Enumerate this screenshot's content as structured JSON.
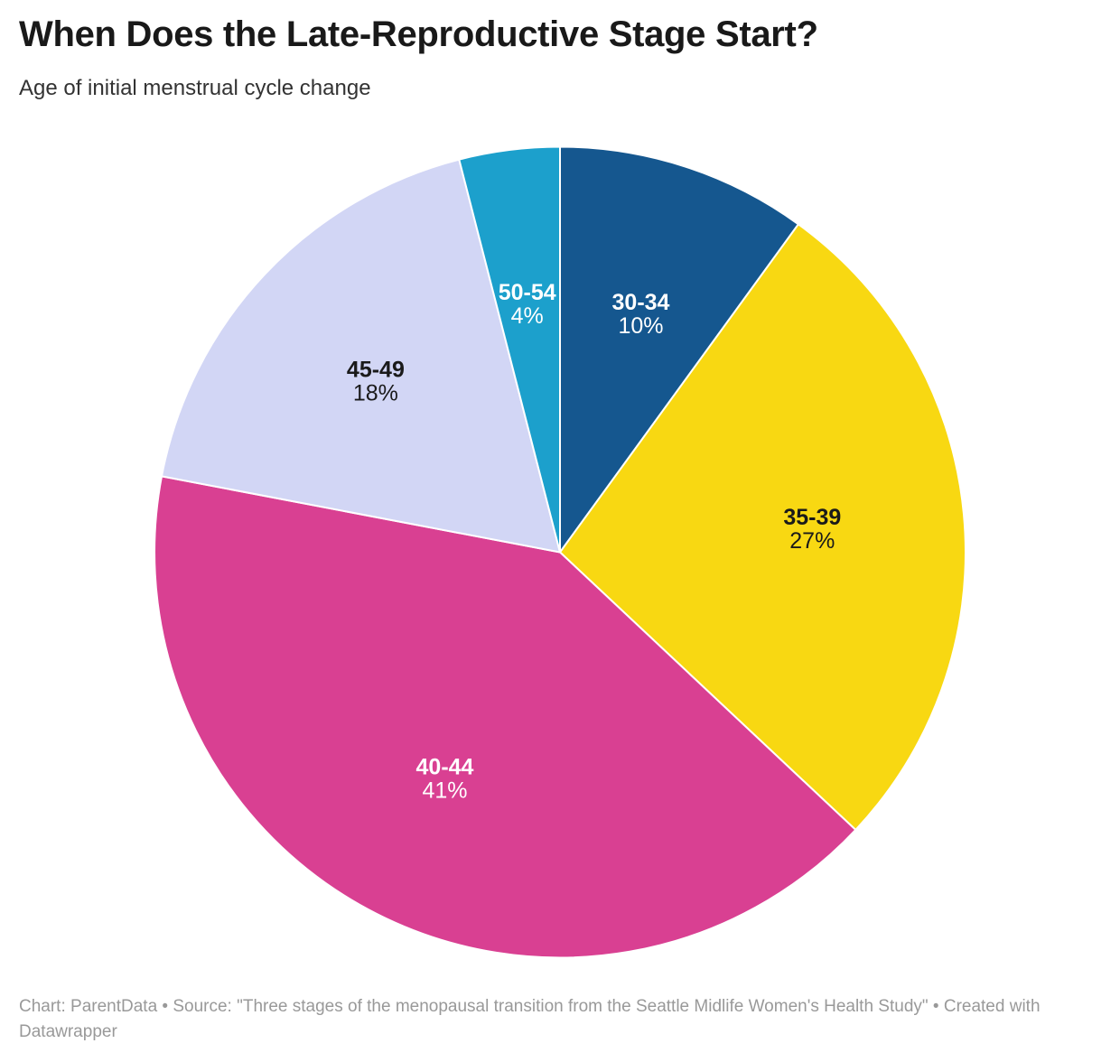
{
  "header": {
    "title": "When Does the Late-Reproductive Stage Start?",
    "subtitle": "Age of initial menstrual cycle change"
  },
  "chart_data": {
    "type": "pie",
    "title": "When Does the Late-Reproductive Stage Start?",
    "subtitle": "Age of initial menstrual cycle change",
    "unit": "%",
    "direction": "clockwise",
    "start_angle_deg": 0,
    "stroke_color": "#FFFFFF",
    "legend_position": "none, labels inside slices",
    "slices": [
      {
        "label": "30-34",
        "value": 10,
        "color": "#15578F",
        "label_color": "#FFFFFF",
        "label_shift": [
          0,
          1
        ]
      },
      {
        "label": "35-39",
        "value": 27,
        "color": "#F8D812",
        "label_color": "#1A1A1A",
        "label_shift": [
          -9,
          -9
        ]
      },
      {
        "label": "40-44",
        "value": 41,
        "color": "#D94092",
        "label_color": "#FFFFFF",
        "label_shift": [
          4,
          -18
        ]
      },
      {
        "label": "45-49",
        "value": 18,
        "color": "#D2D6F5",
        "label_color": "#1A1A1A",
        "label_shift": [
          7,
          -2
        ]
      },
      {
        "label": "50-54",
        "value": 4,
        "color": "#1CA0CC",
        "label_color": "#FFFFFF",
        "label_shift": [
          0,
          2
        ]
      }
    ]
  },
  "footer": {
    "text": "Chart: ParentData • Source: \"Three stages of the menopausal transition from the Seattle Midlife Women's Health Study\" • Created with Datawrapper"
  }
}
